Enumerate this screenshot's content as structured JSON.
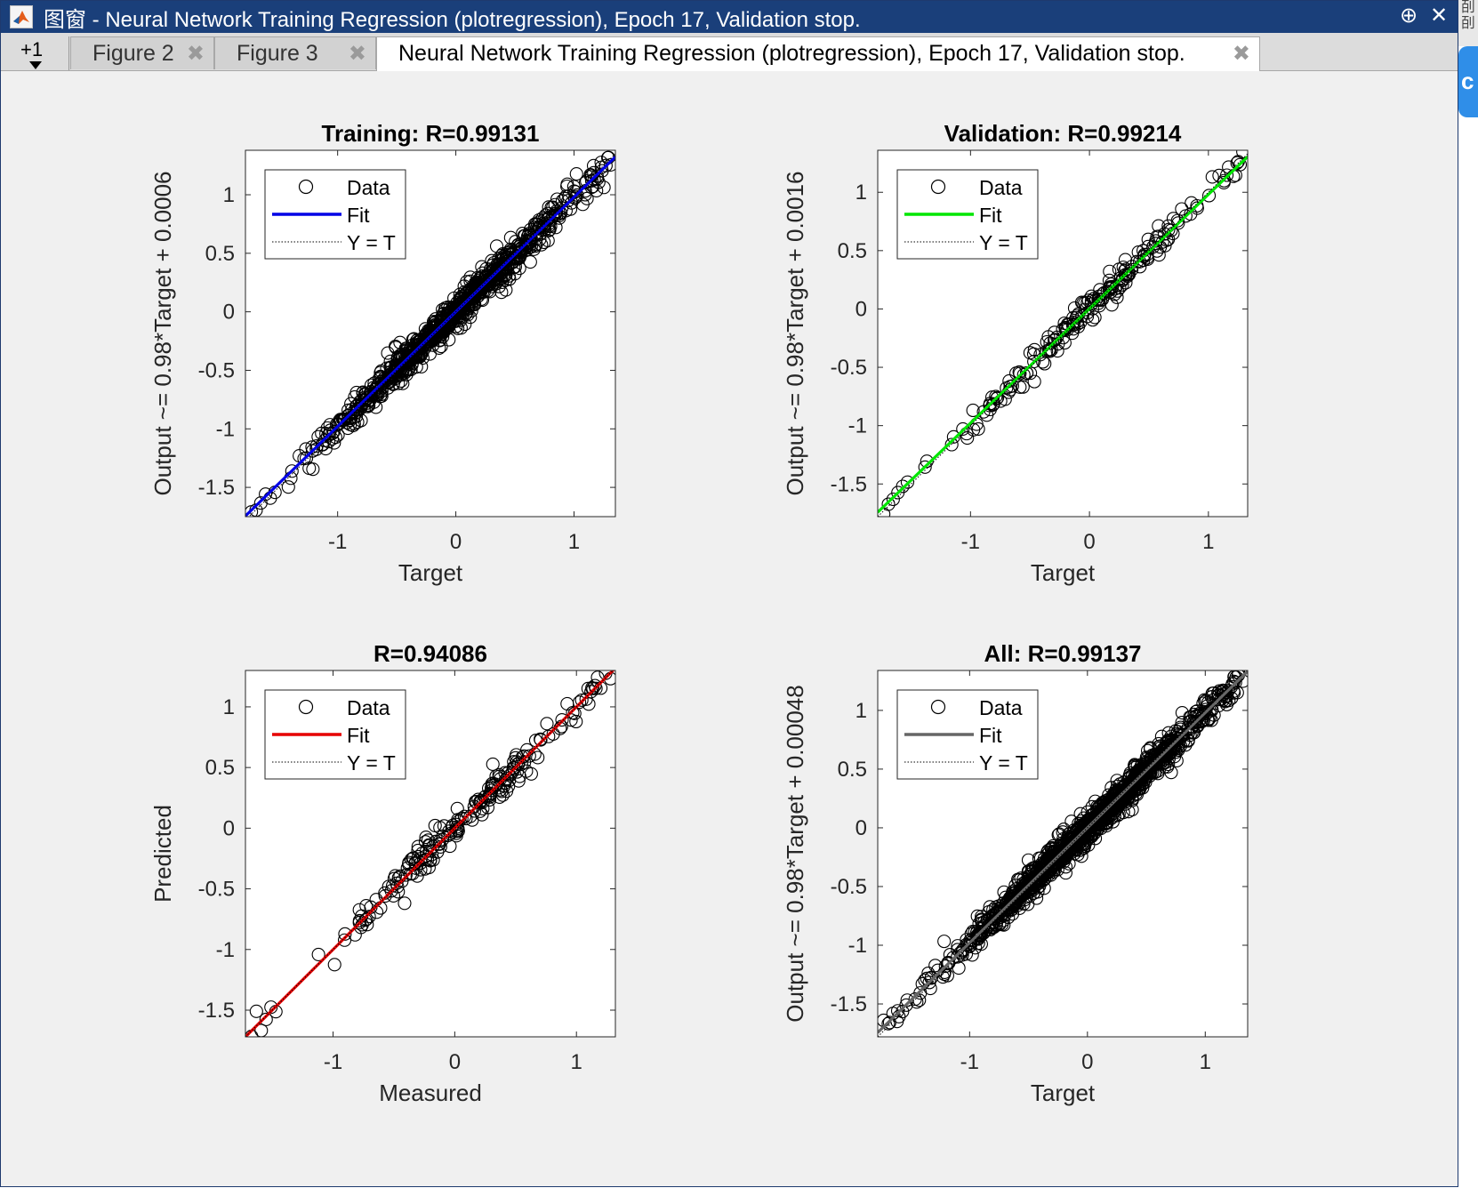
{
  "window": {
    "title": "图窗 - Neural Network Training Regression (plotregression), Epoch 17, Validation stop.",
    "app_icon": "matlab-icon",
    "controls": [
      "pin-icon",
      "close-icon"
    ],
    "close_glyph": "✕",
    "pin_glyph": "⊕"
  },
  "tabs": {
    "menu_label": "+1",
    "items": [
      {
        "label": "Figure 2",
        "active": false
      },
      {
        "label": "Figure 3",
        "active": false
      },
      {
        "label": "Neural Network Training Regression (plotregression), Epoch 17, Validation stop.",
        "active": true
      }
    ],
    "close_glyph": "✖"
  },
  "side": {
    "strip_text": "㓦 㓦",
    "button_glyph": "c"
  },
  "legend_labels": [
    "Data",
    "Fit",
    "Y = T"
  ],
  "chart_data": [
    {
      "type": "scatter",
      "title": "Training: R=0.99131",
      "xlabel": "Target",
      "ylabel": "Output ~= 0.98*Target + 0.0006",
      "xlim": [
        -1.78,
        1.35
      ],
      "ylim": [
        -1.75,
        1.38
      ],
      "xticks": [
        -1,
        0,
        1
      ],
      "yticks": [
        -1.5,
        -1,
        -0.5,
        0,
        0.5,
        1
      ],
      "fit": {
        "slope": 0.98,
        "intercept": 0.0006,
        "color": "#0000e6"
      },
      "n_points": 900,
      "noise": 0.055,
      "seed": 11,
      "legend": [
        "Data",
        "Fit",
        "Y = T"
      ]
    },
    {
      "type": "scatter",
      "title": "Validation: R=0.99214",
      "xlabel": "Target",
      "ylabel": "Output ~= 0.98*Target + 0.0016",
      "xlim": [
        -1.78,
        1.33
      ],
      "ylim": [
        -1.78,
        1.36
      ],
      "xticks": [
        -1,
        0,
        1
      ],
      "yticks": [
        -1.5,
        -1,
        -0.5,
        0,
        0.5,
        1
      ],
      "fit": {
        "slope": 0.98,
        "intercept": 0.0016,
        "color": "#00e600"
      },
      "n_points": 210,
      "noise": 0.05,
      "seed": 23,
      "legend": [
        "Data",
        "Fit",
        "Y = T"
      ]
    },
    {
      "type": "scatter",
      "title": "R=0.94086",
      "xlabel": "Measured",
      "ylabel": "Predicted",
      "xlim": [
        -1.72,
        1.32
      ],
      "ylim": [
        -1.72,
        1.3
      ],
      "xticks": [
        -1,
        0,
        1
      ],
      "yticks": [
        -1.5,
        -1,
        -0.5,
        0,
        0.5,
        1
      ],
      "fit": {
        "slope": 1.0,
        "intercept": 0.0,
        "color": "#e60000"
      },
      "n_points": 210,
      "noise": 0.055,
      "seed": 37,
      "legend": [
        "Data",
        "Fit",
        "Y = T"
      ]
    },
    {
      "type": "scatter",
      "title": "All: R=0.99137",
      "xlabel": "Target",
      "ylabel": "Output ~= 0.98*Target + 0.00048",
      "xlim": [
        -1.78,
        1.36
      ],
      "ylim": [
        -1.78,
        1.34
      ],
      "xticks": [
        -1,
        0,
        1
      ],
      "yticks": [
        -1.5,
        -1,
        -0.5,
        0,
        0.5,
        1
      ],
      "fit": {
        "slope": 0.98,
        "intercept": 0.00048,
        "color": "#666666"
      },
      "n_points": 1300,
      "noise": 0.055,
      "seed": 53,
      "legend": [
        "Data",
        "Fit",
        "Y = T"
      ]
    }
  ]
}
